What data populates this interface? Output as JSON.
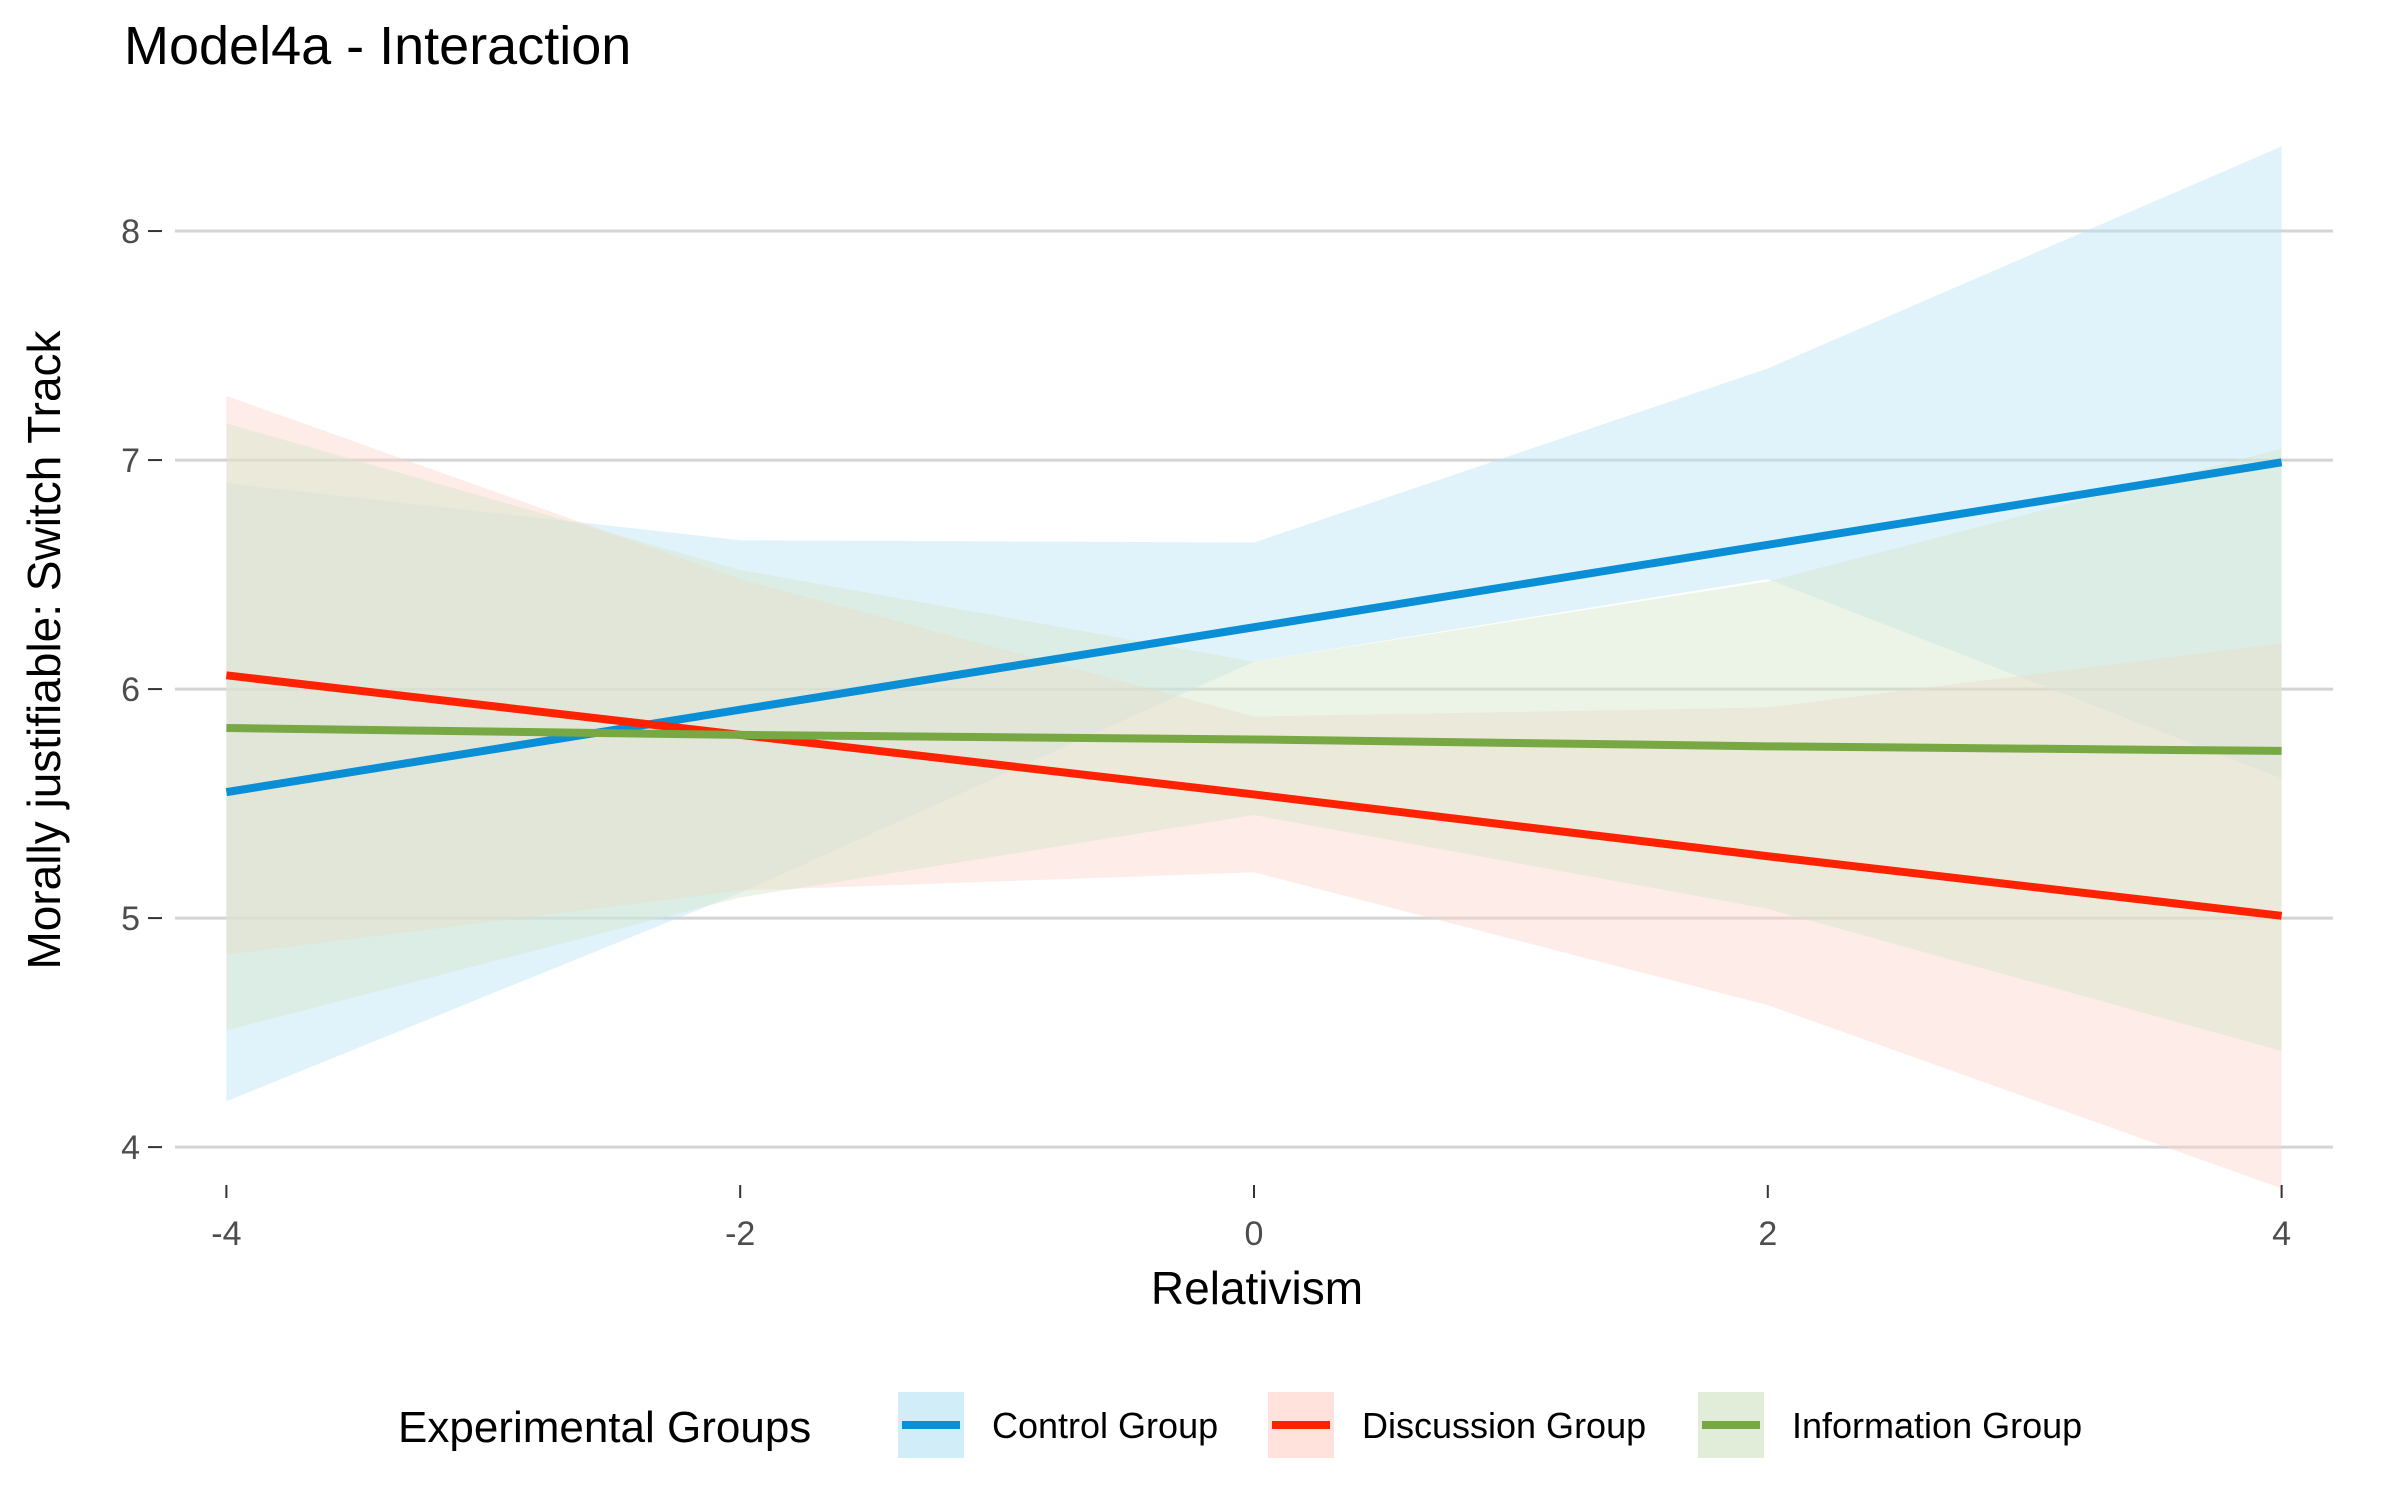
{
  "chart_data": {
    "type": "line",
    "title": "Model4a - Interaction",
    "xlabel": "Relativism",
    "ylabel": "Morally justifiable: Switch Track",
    "xlim": [
      -4.2,
      4.2
    ],
    "ylim": [
      3.9,
      8.45
    ],
    "x_ticks": [
      -4,
      -2,
      0,
      2,
      4
    ],
    "x_tick_labels": [
      "-4",
      "-2",
      "0",
      "2",
      "4"
    ],
    "y_ticks": [
      4,
      5,
      6,
      7,
      8
    ],
    "y_tick_labels": [
      "4",
      "5",
      "6",
      "7",
      "8"
    ],
    "grid": "horizontal major gridlines",
    "legend_title": "Experimental Groups",
    "legend_position": "bottom",
    "x": [
      -4,
      -2,
      0,
      2,
      4
    ],
    "series": [
      {
        "name": "Control Group",
        "color": "#0A8ED6",
        "fill": "#BDE5F5",
        "values": [
          5.55,
          5.91,
          6.27,
          6.63,
          6.99
        ],
        "lower": [
          4.2,
          5.11,
          6.12,
          6.48,
          5.61
        ],
        "upper": [
          6.9,
          6.65,
          6.64,
          7.4,
          8.37
        ]
      },
      {
        "name": "Discussion Group",
        "color": "#FF2200",
        "fill": "#FDD5CC",
        "values": [
          6.06,
          5.8,
          5.54,
          5.27,
          5.01
        ],
        "lower": [
          4.84,
          5.12,
          5.2,
          4.62,
          3.82
        ],
        "upper": [
          7.28,
          6.48,
          5.88,
          5.92,
          6.2
        ]
      },
      {
        "name": "Information Group",
        "color": "#77A843",
        "fill": "#D4E6C9",
        "values": [
          5.83,
          5.8,
          5.78,
          5.75,
          5.73
        ],
        "lower": [
          4.51,
          5.09,
          5.45,
          5.04,
          4.42
        ],
        "upper": [
          7.16,
          6.52,
          6.12,
          6.47,
          7.05
        ]
      }
    ]
  }
}
